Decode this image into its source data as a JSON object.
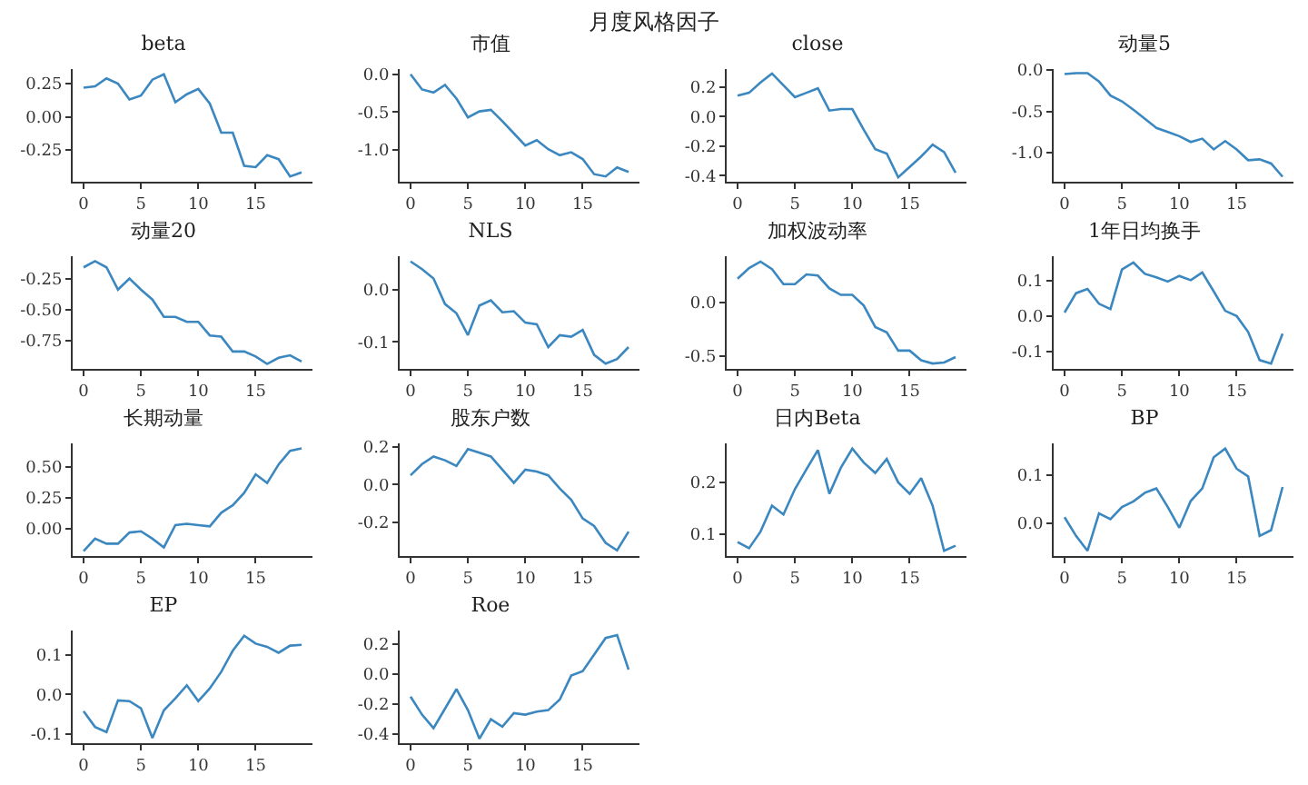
{
  "chart_data": [
    {
      "type": "other",
      "title": "月度风格因子"
    },
    {
      "type": "line",
      "title": "beta",
      "x": [
        0,
        1,
        2,
        3,
        4,
        5,
        6,
        7,
        8,
        9,
        10,
        11,
        12,
        13,
        14,
        15,
        16,
        17,
        18,
        19
      ],
      "xlim": [
        -0.95,
        19.95
      ],
      "xticks": [
        0,
        5,
        10,
        15
      ],
      "ylim": [
        -0.49,
        0.36
      ],
      "yticks": [
        {
          "value": 0.25,
          "label": "0.25"
        },
        {
          "value": 0,
          "label": "0.00"
        },
        {
          "value": -0.25,
          "label": "-0.25"
        }
      ],
      "color": "#3b87c0",
      "values": [
        0.22,
        0.23,
        0.29,
        0.25,
        0.13,
        0.16,
        0.28,
        0.32,
        0.11,
        0.17,
        0.21,
        0.1,
        -0.12,
        -0.12,
        -0.37,
        -0.38,
        -0.29,
        -0.32,
        -0.45,
        -0.42
      ]
    },
    {
      "type": "line",
      "title": "市值",
      "x": [
        0,
        1,
        2,
        3,
        4,
        5,
        6,
        7,
        8,
        9,
        10,
        11,
        12,
        13,
        14,
        15,
        16,
        17,
        18,
        19
      ],
      "xlim": [
        -0.95,
        19.95
      ],
      "xticks": [
        0,
        5,
        10,
        15
      ],
      "ylim": [
        -1.42,
        0.07
      ],
      "yticks": [
        {
          "value": 0,
          "label": "0.0"
        },
        {
          "value": -0.5,
          "label": "-0.5"
        },
        {
          "value": -1,
          "label": "-1.0"
        }
      ],
      "color": "#3b87c0",
      "values": [
        0,
        -0.2,
        -0.24,
        -0.14,
        -0.32,
        -0.57,
        -0.49,
        -0.47,
        -0.62,
        -0.78,
        -0.94,
        -0.87,
        -0.99,
        -1.07,
        -1.03,
        -1.12,
        -1.32,
        -1.35,
        -1.23,
        -1.29
      ]
    },
    {
      "type": "line",
      "title": "close",
      "x": [
        0,
        1,
        2,
        3,
        4,
        5,
        6,
        7,
        8,
        9,
        10,
        11,
        12,
        13,
        14,
        15,
        16,
        17,
        18,
        19
      ],
      "xlim": [
        -0.95,
        19.95
      ],
      "xticks": [
        0,
        5,
        10,
        15
      ],
      "ylim": [
        -0.44,
        0.32
      ],
      "yticks": [
        {
          "value": 0.2,
          "label": "0.2"
        },
        {
          "value": 0,
          "label": "0.0"
        },
        {
          "value": -0.2,
          "label": "-0.2"
        },
        {
          "value": -0.4,
          "label": "-0.4"
        }
      ],
      "color": "#3b87c0",
      "values": [
        0.14,
        0.16,
        0.23,
        0.29,
        0.21,
        0.13,
        0.16,
        0.19,
        0.04,
        0.05,
        0.05,
        -0.09,
        -0.22,
        -0.25,
        -0.41,
        -0.34,
        -0.27,
        -0.19,
        -0.24,
        -0.38
      ]
    },
    {
      "type": "line",
      "title": "动量5",
      "x": [
        0,
        1,
        2,
        3,
        4,
        5,
        6,
        7,
        8,
        9,
        10,
        11,
        12,
        13,
        14,
        15,
        16,
        17,
        18,
        19
      ],
      "xlim": [
        -0.95,
        19.95
      ],
      "xticks": [
        0,
        5,
        10,
        15
      ],
      "ylim": [
        -1.35,
        0.01
      ],
      "yticks": [
        {
          "value": 0,
          "label": "0.0"
        },
        {
          "value": -0.5,
          "label": "-0.5"
        },
        {
          "value": -1,
          "label": "-1.0"
        }
      ],
      "color": "#3b87c0",
      "values": [
        -0.05,
        -0.04,
        -0.04,
        -0.14,
        -0.31,
        -0.38,
        -0.48,
        -0.59,
        -0.7,
        -0.75,
        -0.8,
        -0.87,
        -0.83,
        -0.96,
        -0.86,
        -0.96,
        -1.09,
        -1.08,
        -1.13,
        -1.29
      ]
    },
    {
      "type": "line",
      "title": "动量20",
      "x": [
        0,
        1,
        2,
        3,
        4,
        5,
        6,
        7,
        8,
        9,
        10,
        11,
        12,
        13,
        14,
        15,
        16,
        17,
        18,
        19
      ],
      "xlim": [
        -0.95,
        19.95
      ],
      "xticks": [
        0,
        5,
        10,
        15
      ],
      "ylim": [
        -0.98,
        -0.07
      ],
      "yticks": [
        {
          "value": -0.25,
          "label": "-0.25"
        },
        {
          "value": -0.5,
          "label": "-0.50"
        },
        {
          "value": -0.75,
          "label": "-0.75"
        }
      ],
      "color": "#3b87c0",
      "values": [
        -0.16,
        -0.11,
        -0.16,
        -0.34,
        -0.25,
        -0.34,
        -0.42,
        -0.56,
        -0.56,
        -0.6,
        -0.6,
        -0.71,
        -0.72,
        -0.84,
        -0.84,
        -0.88,
        -0.94,
        -0.89,
        -0.87,
        -0.92
      ]
    },
    {
      "type": "line",
      "title": "NLS",
      "x": [
        0,
        1,
        2,
        3,
        4,
        5,
        6,
        7,
        8,
        9,
        10,
        11,
        12,
        13,
        14,
        15,
        16,
        17,
        18,
        19
      ],
      "xlim": [
        -0.95,
        19.95
      ],
      "xticks": [
        0,
        5,
        10,
        15
      ],
      "ylim": [
        -0.152,
        0.065
      ],
      "yticks": [
        {
          "value": 0,
          "label": "0.0"
        },
        {
          "value": -0.1,
          "label": "-0.1"
        }
      ],
      "color": "#3b87c0",
      "values": [
        0.055,
        0.04,
        0.022,
        -0.027,
        -0.045,
        -0.087,
        -0.03,
        -0.02,
        -0.043,
        -0.041,
        -0.063,
        -0.066,
        -0.11,
        -0.087,
        -0.09,
        -0.077,
        -0.125,
        -0.142,
        -0.133,
        -0.11
      ]
    },
    {
      "type": "line",
      "title": "加权波动率",
      "x": [
        0,
        1,
        2,
        3,
        4,
        5,
        6,
        7,
        8,
        9,
        10,
        11,
        12,
        13,
        14,
        15,
        16,
        17,
        18,
        19
      ],
      "xlim": [
        -0.95,
        19.95
      ],
      "xticks": [
        0,
        5,
        10,
        15
      ],
      "ylim": [
        -0.62,
        0.43
      ],
      "yticks": [
        {
          "value": 0,
          "label": "0.0"
        },
        {
          "value": -0.5,
          "label": "-0.5"
        }
      ],
      "color": "#3b87c0",
      "values": [
        0.22,
        0.32,
        0.38,
        0.31,
        0.17,
        0.17,
        0.26,
        0.25,
        0.13,
        0.07,
        0.07,
        -0.03,
        -0.23,
        -0.28,
        -0.45,
        -0.45,
        -0.54,
        -0.57,
        -0.56,
        -0.51
      ]
    },
    {
      "type": "line",
      "title": "1年日均换手",
      "x": [
        0,
        1,
        2,
        3,
        4,
        5,
        6,
        7,
        8,
        9,
        10,
        11,
        12,
        13,
        14,
        15,
        16,
        17,
        18,
        19
      ],
      "xlim": [
        -0.95,
        19.95
      ],
      "xticks": [
        0,
        5,
        10,
        15
      ],
      "ylim": [
        -0.15,
        0.17
      ],
      "yticks": [
        {
          "value": 0.1,
          "label": "0.1"
        },
        {
          "value": 0,
          "label": "0.0"
        },
        {
          "value": -0.1,
          "label": "-0.1"
        }
      ],
      "color": "#3b87c0",
      "values": [
        0.01,
        0.065,
        0.077,
        0.035,
        0.02,
        0.132,
        0.152,
        0.12,
        0.11,
        0.098,
        0.114,
        0.102,
        0.124,
        0.07,
        0.015,
        0.0,
        -0.045,
        -0.125,
        -0.135,
        -0.05
      ]
    },
    {
      "type": "line",
      "title": "长期动量",
      "x": [
        0,
        1,
        2,
        3,
        4,
        5,
        6,
        7,
        8,
        9,
        10,
        11,
        12,
        13,
        14,
        15,
        16,
        17,
        18,
        19
      ],
      "xlim": [
        -0.95,
        19.95
      ],
      "xticks": [
        0,
        5,
        10,
        15
      ],
      "ylim": [
        -0.22,
        0.69
      ],
      "yticks": [
        {
          "value": 0.5,
          "label": "0.50"
        },
        {
          "value": 0.25,
          "label": "0.25"
        },
        {
          "value": 0,
          "label": "0.00"
        }
      ],
      "color": "#3b87c0",
      "values": [
        -0.18,
        -0.08,
        -0.12,
        -0.12,
        -0.03,
        -0.02,
        -0.08,
        -0.15,
        0.03,
        0.04,
        0.03,
        0.02,
        0.13,
        0.19,
        0.29,
        0.44,
        0.37,
        0.52,
        0.63,
        0.65
      ]
    },
    {
      "type": "line",
      "title": "股东户数",
      "x": [
        0,
        1,
        2,
        3,
        4,
        5,
        6,
        7,
        8,
        9,
        10,
        11,
        12,
        13,
        14,
        15,
        16,
        17,
        18,
        19
      ],
      "xlim": [
        -0.95,
        19.95
      ],
      "xticks": [
        0,
        5,
        10,
        15
      ],
      "ylim": [
        -0.38,
        0.22
      ],
      "yticks": [
        {
          "value": 0.2,
          "label": "0.2"
        },
        {
          "value": 0,
          "label": "0.0"
        },
        {
          "value": -0.2,
          "label": "-0.2"
        }
      ],
      "color": "#3b87c0",
      "values": [
        0.05,
        0.11,
        0.15,
        0.13,
        0.1,
        0.19,
        0.17,
        0.15,
        0.08,
        0.01,
        0.08,
        0.07,
        0.05,
        -0.02,
        -0.08,
        -0.18,
        -0.22,
        -0.31,
        -0.35,
        -0.25
      ]
    },
    {
      "type": "line",
      "title": "日内Beta",
      "x": [
        0,
        1,
        2,
        3,
        4,
        5,
        6,
        7,
        8,
        9,
        10,
        11,
        12,
        13,
        14,
        15,
        16,
        17,
        18,
        19
      ],
      "xlim": [
        -0.95,
        19.95
      ],
      "xticks": [
        0,
        5,
        10,
        15
      ],
      "ylim": [
        0.058,
        0.275
      ],
      "yticks": [
        {
          "value": 0.1,
          "label": "0.1"
        },
        {
          "value": 0.2,
          "label": "0.2"
        }
      ],
      "color": "#3b87c0",
      "values": [
        0.085,
        0.073,
        0.105,
        0.155,
        0.138,
        0.187,
        0.225,
        0.262,
        0.178,
        0.228,
        0.265,
        0.238,
        0.218,
        0.245,
        0.2,
        0.178,
        0.208,
        0.155,
        0.068,
        0.078
      ]
    },
    {
      "type": "line",
      "title": "BP",
      "x": [
        0,
        1,
        2,
        3,
        4,
        5,
        6,
        7,
        8,
        9,
        10,
        11,
        12,
        13,
        14,
        15,
        16,
        17,
        18,
        19
      ],
      "xlim": [
        -0.95,
        19.95
      ],
      "xticks": [
        0,
        5,
        10,
        15
      ],
      "ylim": [
        -0.069,
        0.166
      ],
      "yticks": [
        {
          "value": 0.1,
          "label": "0.1"
        },
        {
          "value": 0,
          "label": "0.0"
        }
      ],
      "color": "#3b87c0",
      "values": [
        0.012,
        -0.027,
        -0.058,
        0.02,
        0.008,
        0.033,
        0.045,
        0.063,
        0.072,
        0.033,
        -0.01,
        0.046,
        0.072,
        0.137,
        0.155,
        0.113,
        0.097,
        -0.027,
        -0.015,
        0.075
      ]
    },
    {
      "type": "line",
      "title": "EP",
      "x": [
        0,
        1,
        2,
        3,
        4,
        5,
        6,
        7,
        8,
        9,
        10,
        11,
        12,
        13,
        14,
        15,
        16,
        17,
        18,
        19
      ],
      "xlim": [
        -0.95,
        19.95
      ],
      "xticks": [
        0,
        5,
        10,
        15
      ],
      "ylim": [
        -0.123,
        0.161
      ],
      "yticks": [
        {
          "value": 0.1,
          "label": "0.1"
        },
        {
          "value": 0,
          "label": "0.0"
        },
        {
          "value": -0.1,
          "label": "-0.1"
        }
      ],
      "color": "#3b87c0",
      "values": [
        -0.042,
        -0.082,
        -0.095,
        -0.015,
        -0.017,
        -0.035,
        -0.11,
        -0.04,
        -0.01,
        0.023,
        -0.017,
        0.015,
        0.057,
        0.11,
        0.148,
        0.128,
        0.12,
        0.105,
        0.123,
        0.125
      ]
    },
    {
      "type": "line",
      "title": "Roe",
      "x": [
        0,
        1,
        2,
        3,
        4,
        5,
        6,
        7,
        8,
        9,
        10,
        11,
        12,
        13,
        14,
        15,
        16,
        17,
        18,
        19
      ],
      "xlim": [
        -0.95,
        19.95
      ],
      "xticks": [
        0,
        5,
        10,
        15
      ],
      "ylim": [
        -0.46,
        0.29
      ],
      "yticks": [
        {
          "value": 0.2,
          "label": "0.2"
        },
        {
          "value": 0,
          "label": "0.0"
        },
        {
          "value": -0.2,
          "label": "-0.2"
        },
        {
          "value": -0.4,
          "label": "-0.4"
        }
      ],
      "color": "#3b87c0",
      "values": [
        -0.15,
        -0.27,
        -0.36,
        -0.23,
        -0.1,
        -0.24,
        -0.43,
        -0.3,
        -0.35,
        -0.26,
        -0.27,
        -0.25,
        -0.24,
        -0.17,
        -0.01,
        0.02,
        0.13,
        0.24,
        0.26,
        0.03
      ]
    }
  ]
}
